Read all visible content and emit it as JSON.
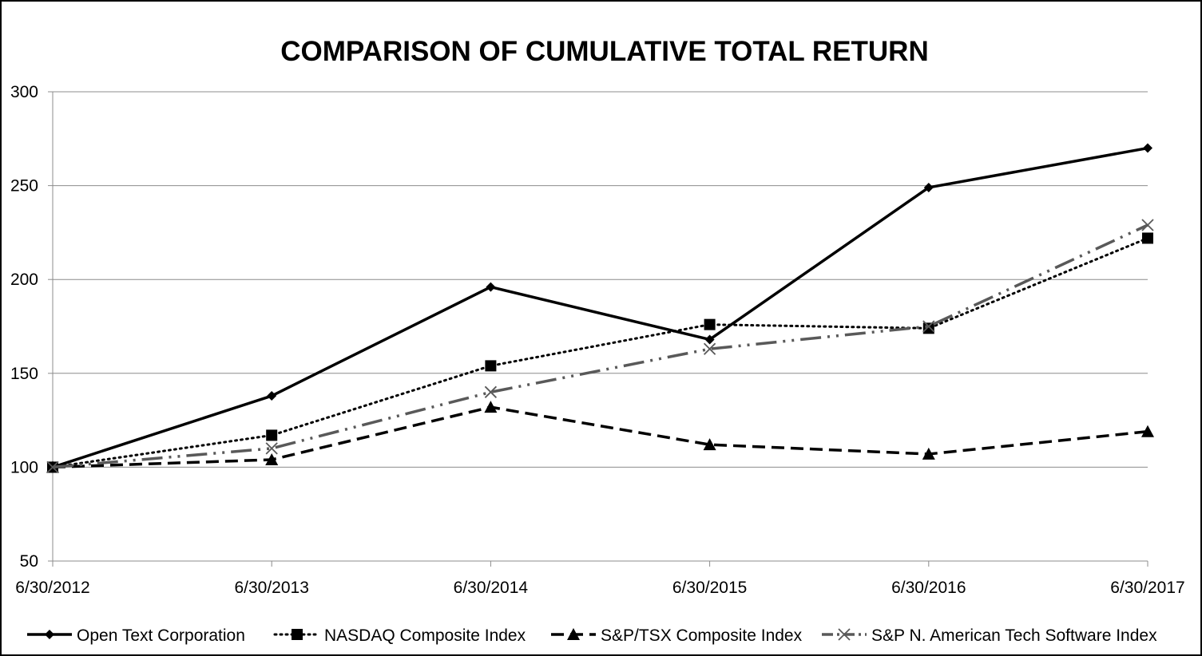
{
  "chart_data": {
    "type": "line",
    "title": "COMPARISON OF CUMULATIVE TOTAL RETURN",
    "xlabel": "",
    "ylabel": "",
    "categories": [
      "6/30/2012",
      "6/30/2013",
      "6/30/2014",
      "6/30/2015",
      "6/30/2016",
      "6/30/2017"
    ],
    "ylim": [
      50,
      300
    ],
    "yticks": [
      "50",
      "100",
      "150",
      "200",
      "250",
      "300"
    ],
    "grid": true,
    "legend": "bottom",
    "series": [
      {
        "name": "Open Text Corporation",
        "values": [
          100,
          138,
          196,
          168,
          249,
          270
        ],
        "color": "#000000",
        "dash": "solid",
        "marker": "diamond"
      },
      {
        "name": "NASDAQ Composite Index",
        "values": [
          100,
          117,
          154,
          176,
          174,
          222
        ],
        "color": "#000000",
        "dash": "dotted",
        "marker": "square"
      },
      {
        "name": "S&P/TSX Composite Index",
        "values": [
          100,
          104,
          132,
          112,
          107,
          119
        ],
        "color": "#000000",
        "dash": "dashed",
        "marker": "triangle"
      },
      {
        "name": "S&P N. American Tech Software Index",
        "values": [
          100,
          110,
          140,
          163,
          175,
          229
        ],
        "color": "#595959",
        "dash": "dash-dot-dot",
        "marker": "x"
      }
    ]
  }
}
